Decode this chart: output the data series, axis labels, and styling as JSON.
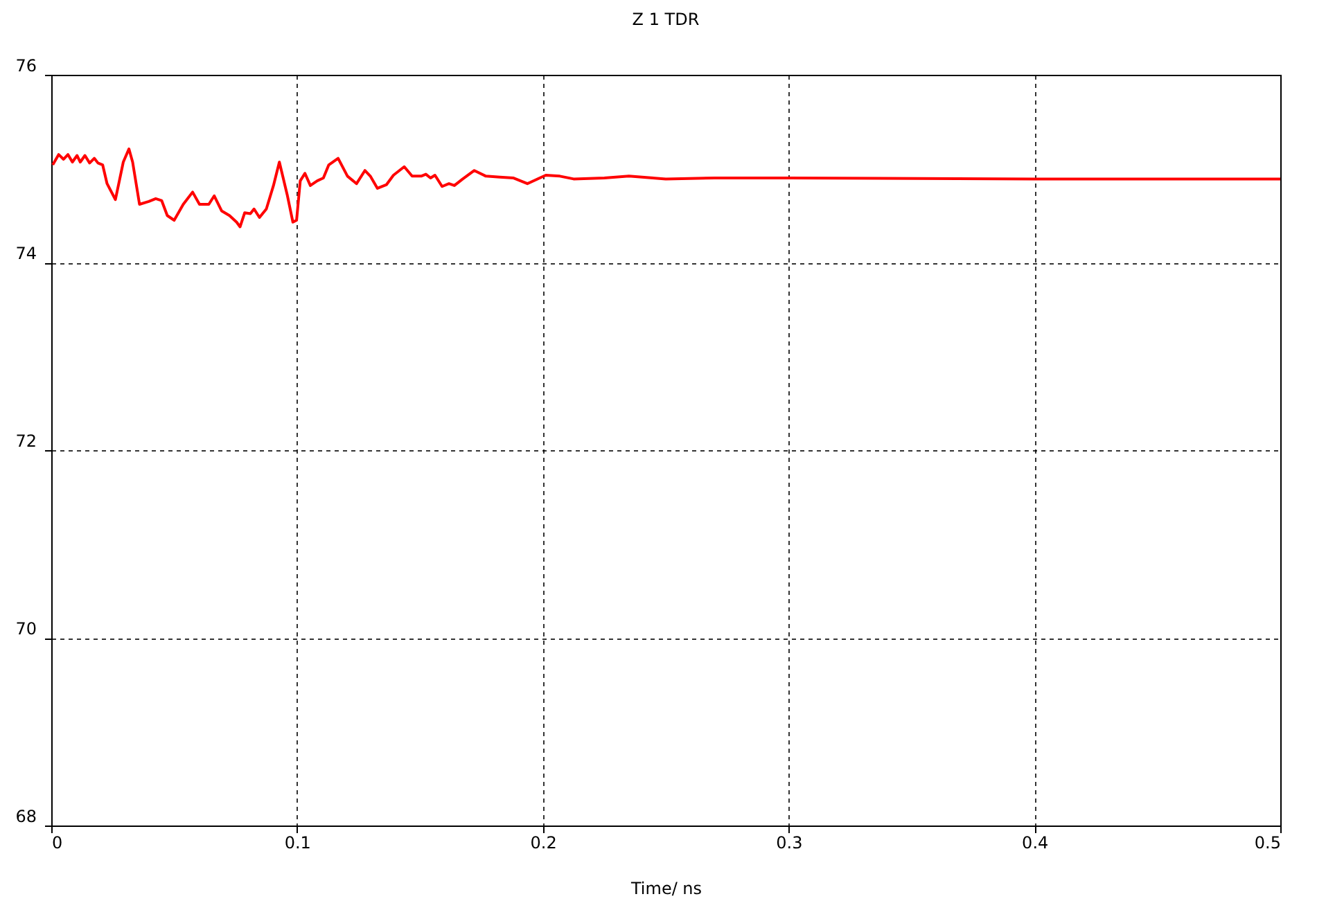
{
  "chart_data": {
    "type": "line",
    "title": "Z 1 TDR",
    "xlabel": "Time/ ns",
    "xlim": [
      0,
      0.5
    ],
    "xticks": [
      0,
      0.1,
      0.2,
      0.3,
      0.4,
      0.5
    ],
    "ylim": [
      68,
      76
    ],
    "yticks": [
      68,
      70,
      72,
      74,
      76
    ],
    "grid": true,
    "line_style": "solid",
    "series": [
      {
        "color": "#ff0000",
        "x": [
          0.0006,
          0.003,
          0.005,
          0.0068,
          0.0086,
          0.0105,
          0.0118,
          0.0137,
          0.0156,
          0.0175,
          0.019,
          0.0209,
          0.0227,
          0.0261,
          0.0293,
          0.0316,
          0.0331,
          0.0359,
          0.0397,
          0.0425,
          0.0449,
          0.0472,
          0.05,
          0.0537,
          0.0575,
          0.0603,
          0.0641,
          0.0663,
          0.0693,
          0.0725,
          0.0754,
          0.0768,
          0.0787,
          0.081,
          0.0825,
          0.0847,
          0.0875,
          0.0904,
          0.0928,
          0.096,
          0.0983,
          0.0998,
          0.1013,
          0.1032,
          0.1054,
          0.1082,
          0.1107,
          0.1129,
          0.1167,
          0.1205,
          0.1242,
          0.1276,
          0.1298,
          0.1327,
          0.1364,
          0.1392,
          0.1436,
          0.1468,
          0.1505,
          0.1524,
          0.1543,
          0.1561,
          0.159,
          0.1618,
          0.164,
          0.1674,
          0.1721,
          0.1768,
          0.1825,
          0.1881,
          0.1937,
          0.2012,
          0.2069,
          0.2125,
          0.225,
          0.235,
          0.25,
          0.27,
          0.3,
          0.4,
          0.5
        ],
        "values": [
          75.04,
          75.15,
          75.1,
          75.15,
          75.07,
          75.14,
          75.07,
          75.14,
          75.06,
          75.11,
          75.06,
          75.04,
          74.84,
          74.67,
          75.07,
          75.21,
          75.07,
          74.62,
          74.65,
          74.68,
          74.66,
          74.5,
          74.45,
          74.62,
          74.75,
          74.62,
          74.62,
          74.71,
          74.55,
          74.5,
          74.43,
          74.38,
          74.53,
          74.52,
          74.57,
          74.48,
          74.57,
          74.82,
          75.07,
          74.72,
          74.43,
          74.45,
          74.87,
          74.95,
          74.82,
          74.87,
          74.9,
          75.04,
          75.11,
          74.92,
          74.84,
          74.98,
          74.92,
          74.79,
          74.83,
          74.93,
          75.02,
          74.92,
          74.92,
          74.94,
          74.9,
          74.93,
          74.81,
          74.84,
          74.82,
          74.89,
          74.98,
          74.92,
          74.91,
          74.9,
          74.84,
          74.93,
          74.92,
          74.89,
          74.9,
          74.92,
          74.89,
          74.9,
          74.9,
          74.89,
          74.89
        ]
      }
    ]
  }
}
